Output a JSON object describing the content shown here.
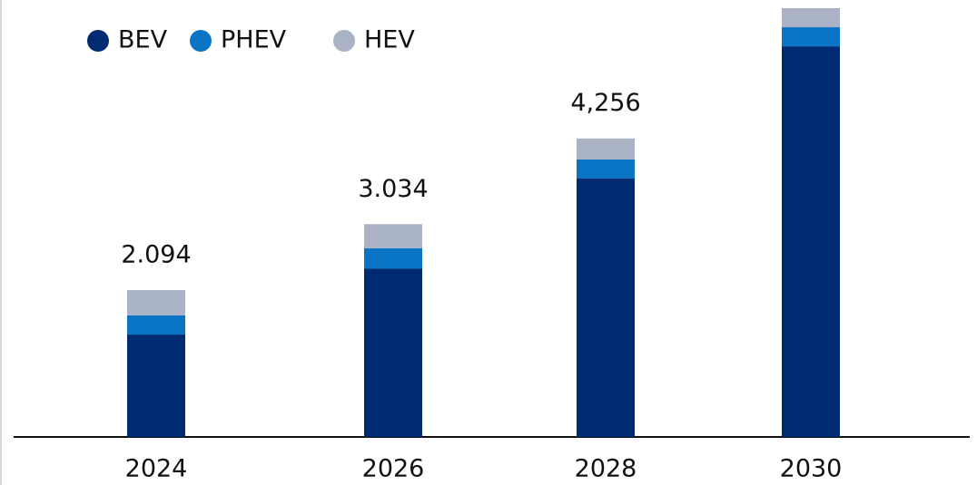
{
  "chart_data": {
    "type": "bar",
    "stacked": true,
    "categories": [
      "2024",
      "2026",
      "2028",
      "2030"
    ],
    "series": [
      {
        "name": "BEV",
        "color": "#002b73",
        "values": [
          1460,
          2398,
          3684,
          5570
        ]
      },
      {
        "name": "PHEV",
        "color": "#0a74c4",
        "values": [
          272,
          292,
          273,
          272
        ]
      },
      {
        "name": "HEV",
        "color": "#aab3c5",
        "values": [
          362,
          344,
          299,
          272
        ]
      }
    ],
    "totals": [
      2094,
      3034,
      4256,
      null
    ],
    "value_labels": [
      "2.094",
      "3.034",
      "4,256",
      null
    ]
  }
}
